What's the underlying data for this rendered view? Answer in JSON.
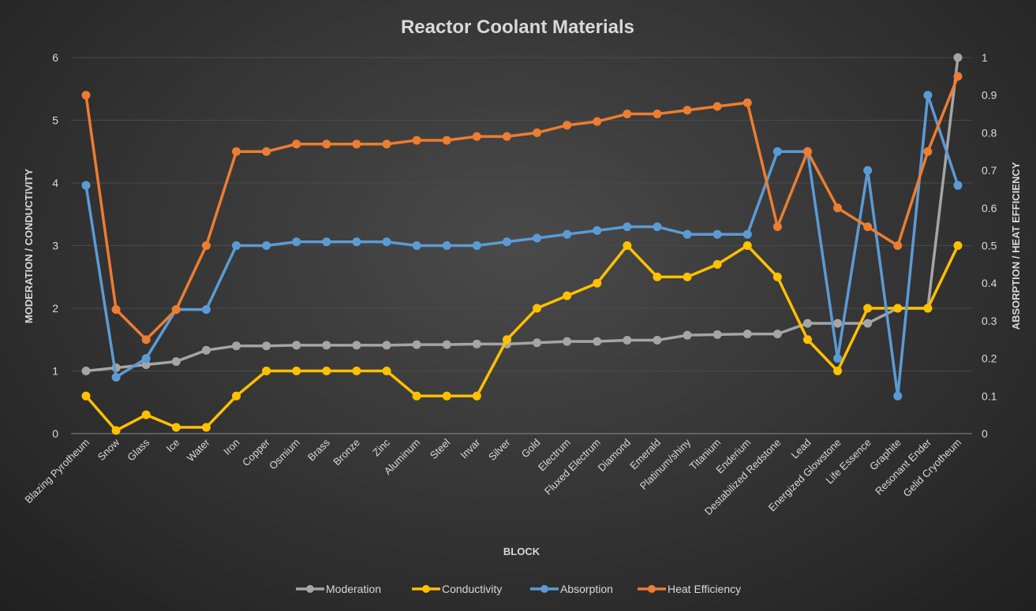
{
  "chart_data": {
    "type": "line",
    "title": "Reactor Coolant Materials",
    "xlabel": "BLOCK",
    "ylabel_left": "MODERATION / CONDUCTIVITY",
    "ylabel_right": "ABSORPTION / HEAT EFFICIENCY",
    "ylim_left": [
      0,
      6
    ],
    "ylim_right": [
      0,
      1
    ],
    "yticks_left": [
      "0",
      "1",
      "2",
      "3",
      "4",
      "5",
      "6"
    ],
    "yticks_right": [
      "0",
      "0.1",
      "0.2",
      "0.3",
      "0.4",
      "0.5",
      "0.6",
      "0.7",
      "0.8",
      "0.9",
      "1"
    ],
    "grid": true,
    "legend_position": "bottom",
    "categories": [
      "Blazing Pyrotheum",
      "Snow",
      "Glass",
      "Ice",
      "Water",
      "Iron",
      "Copper",
      "Osmium",
      "Brass",
      "Bronze",
      "Zinc",
      "Aluminum",
      "Steel",
      "Invar",
      "Silver",
      "Gold",
      "Electrum",
      "Fluxed Electrum",
      "Diamond",
      "Emerald",
      "Platinum/shiny",
      "Titanium",
      "Enderium",
      "Destabilized Redstone",
      "Lead",
      "Energized Glowstone",
      "Life Essence",
      "Graphite",
      "Resonant Ender",
      "Gelid Cryotheum"
    ],
    "series": [
      {
        "name": "Moderation",
        "axis": "left",
        "color": "#a5a5a5",
        "values": [
          1.0,
          1.05,
          1.1,
          1.15,
          1.33,
          1.4,
          1.4,
          1.41,
          1.41,
          1.41,
          1.41,
          1.42,
          1.42,
          1.43,
          1.43,
          1.45,
          1.47,
          1.47,
          1.49,
          1.49,
          1.57,
          1.58,
          1.59,
          1.59,
          1.76,
          1.76,
          1.76,
          2.0,
          2.0,
          6.0
        ]
      },
      {
        "name": "Conductivity",
        "axis": "left",
        "color": "#ffc000",
        "values": [
          0.6,
          0.05,
          0.3,
          0.1,
          0.1,
          0.6,
          1,
          1,
          1,
          1,
          1,
          0.6,
          0.6,
          0.6,
          1.5,
          2,
          2.2,
          2.4,
          3,
          2.5,
          2.5,
          2.7,
          3,
          2.5,
          1.5,
          1,
          2,
          2,
          2,
          3
        ]
      },
      {
        "name": "Absorption",
        "axis": "right",
        "color": "#5b9bd5",
        "values": [
          0.66,
          0.15,
          0.2,
          0.33,
          0.33,
          0.5,
          0.5,
          0.51,
          0.51,
          0.51,
          0.51,
          0.5,
          0.5,
          0.5,
          0.51,
          0.52,
          0.53,
          0.54,
          0.55,
          0.55,
          0.53,
          0.53,
          0.53,
          0.75,
          0.75,
          0.2,
          0.7,
          0.1,
          0.9,
          0.66
        ]
      },
      {
        "name": "Heat Efficiency",
        "axis": "right",
        "color": "#ed7d31",
        "values": [
          0.9,
          0.33,
          0.25,
          0.33,
          0.5,
          0.75,
          0.75,
          0.77,
          0.77,
          0.77,
          0.77,
          0.78,
          0.78,
          0.79,
          0.79,
          0.8,
          0.82,
          0.83,
          0.85,
          0.85,
          0.86,
          0.87,
          0.88,
          0.55,
          0.75,
          0.6,
          0.55,
          0.5,
          0.75,
          0.95
        ]
      }
    ]
  }
}
